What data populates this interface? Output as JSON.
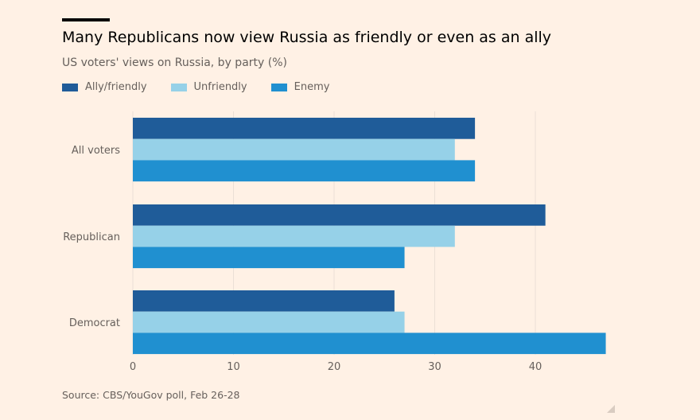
{
  "title": "Many Republicans now view Russia as friendly or even as an ally",
  "subtitle": "US voters' views on Russia, by party (%)",
  "source": "Source: CBS/YouGov poll, Feb 26-28",
  "chart_data": {
    "type": "bar",
    "orientation": "horizontal",
    "categories": [
      "All voters",
      "Republican",
      "Democrat"
    ],
    "series": [
      {
        "name": "Ally/friendly",
        "color": "#1f5c99",
        "values": [
          34,
          41,
          26
        ]
      },
      {
        "name": "Unfriendly",
        "color": "#96d1e8",
        "values": [
          32,
          32,
          27
        ]
      },
      {
        "name": "Enemy",
        "color": "#2090d0",
        "values": [
          34,
          27,
          47
        ]
      }
    ],
    "xlim": [
      0,
      47
    ],
    "xticks": [
      "0",
      "10",
      "20",
      "30",
      "40"
    ],
    "grid": true,
    "legend": "top-left"
  }
}
